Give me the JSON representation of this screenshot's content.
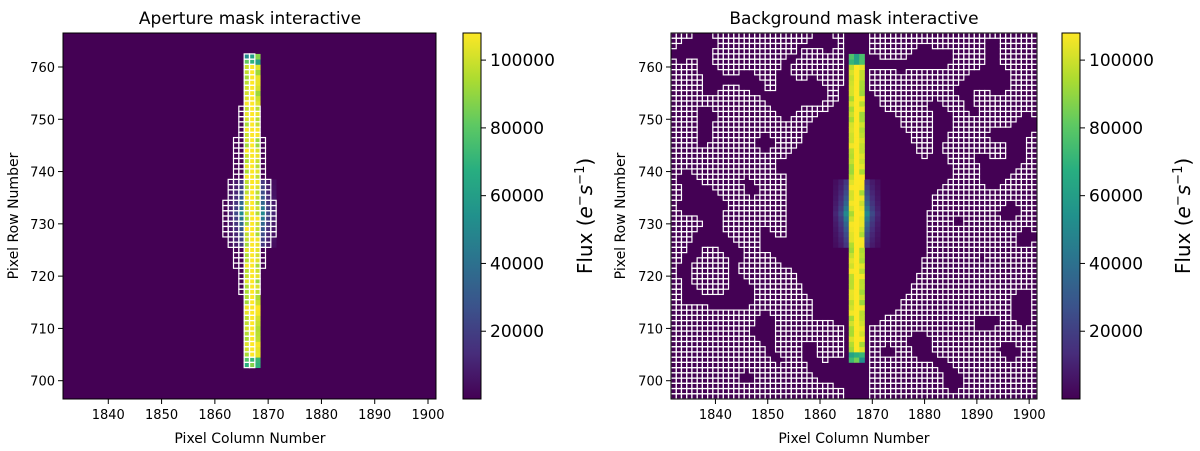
{
  "chart_data": [
    {
      "type": "heatmap",
      "title": "Aperture mask interactive",
      "xlabel": "Pixel Column Number",
      "ylabel": "Pixel Row Number",
      "xlim": [
        1831.5,
        1901.5
      ],
      "ylim": [
        696.5,
        766.5
      ],
      "xticks": [
        1840,
        1850,
        1860,
        1870,
        1880,
        1890,
        1900
      ],
      "yticks": [
        700,
        710,
        720,
        730,
        740,
        750,
        760
      ],
      "colormap": "viridis",
      "background_color": "#440154",
      "colorbar": {
        "label_base": "Flux (",
        "label_e": "e",
        "label_sup1": "−",
        "label_s": "s",
        "label_sup2": "−1",
        "label_close": ")",
        "ticks": [
          20000,
          40000,
          60000,
          80000,
          100000
        ],
        "range": [
          0,
          108000
        ]
      },
      "star": {
        "column": 1867,
        "core_rows": [
          703,
          762
        ],
        "core_columns": [
          1866,
          1868
        ],
        "halo_rows": [
          726,
          738
        ],
        "halo_columns": [
          1863,
          1871
        ],
        "peak_flux": 108000
      },
      "mask": {
        "name": "aperture",
        "row_ranges": [
          {
            "columns": [
              1866,
              1867
            ],
            "rows": [
              703,
              762
            ]
          },
          {
            "columns": [
              1865,
              1868
            ],
            "rows": [
              717,
              752
            ]
          },
          {
            "columns": [
              1864,
              1869
            ],
            "rows": [
              722,
              746
            ]
          },
          {
            "columns": [
              1863,
              1870
            ],
            "rows": [
              726,
              738
            ]
          },
          {
            "columns": [
              1862,
              1871
            ],
            "rows": [
              728,
              734
            ]
          }
        ]
      }
    },
    {
      "type": "heatmap",
      "title": "Background mask interactive",
      "xlabel": "Pixel Column Number",
      "ylabel": "Pixel Row Number",
      "xlim": [
        1831.5,
        1901.5
      ],
      "ylim": [
        696.5,
        766.5
      ],
      "xticks": [
        1840,
        1850,
        1860,
        1870,
        1880,
        1890,
        1900
      ],
      "yticks": [
        700,
        710,
        720,
        730,
        740,
        750,
        760
      ],
      "colormap": "viridis",
      "background_color": "#440154",
      "colorbar": {
        "label_base": "Flux (",
        "label_e": "e",
        "label_sup1": "−",
        "label_s": "s",
        "label_sup2": "−1",
        "label_close": ")",
        "ticks": [
          20000,
          40000,
          60000,
          80000,
          100000
        ],
        "range": [
          0,
          108000
        ]
      },
      "star": {
        "column": 1867,
        "core_rows": [
          704,
          762
        ],
        "core_columns": [
          1866,
          1868
        ],
        "halo_rows": [
          726,
          738
        ],
        "halo_columns": [
          1863,
          1871
        ],
        "peak_flux": 108000
      },
      "mask": {
        "name": "background",
        "description": "scattered background pixels",
        "seed": 7,
        "fill_fraction": 0.55
      }
    }
  ]
}
